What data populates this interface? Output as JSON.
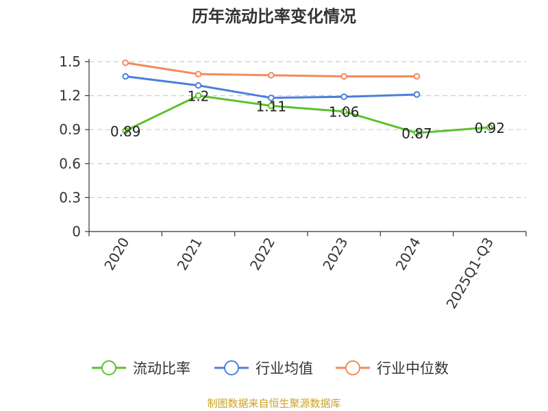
{
  "chart_data": {
    "type": "line",
    "title": "历年流动比率变化情况",
    "categories": [
      "2020",
      "2021",
      "2022",
      "2023",
      "2024",
      "2025Q1-Q3"
    ],
    "ylim": [
      0,
      1.5
    ],
    "yticks": [
      "0",
      "0.3",
      "0.6",
      "0.9",
      "1.2",
      "1.5"
    ],
    "grid": true,
    "legend_position": "bottom",
    "series": [
      {
        "name": "流动比率",
        "color": "#5ac229",
        "values": [
          0.89,
          1.2,
          1.11,
          1.06,
          0.87,
          0.92
        ],
        "labels": [
          "0.89",
          "1.2",
          "1.11",
          "1.06",
          "0.87",
          "0.92"
        ]
      },
      {
        "name": "行业均值",
        "color": "#4a7fdb",
        "values": [
          1.37,
          1.29,
          1.18,
          1.19,
          1.21,
          null
        ]
      },
      {
        "name": "行业中位数",
        "color": "#f5895a",
        "values": [
          1.49,
          1.39,
          1.38,
          1.37,
          1.37,
          null
        ]
      }
    ]
  },
  "source": "制图数据来自恒生聚源数据库"
}
